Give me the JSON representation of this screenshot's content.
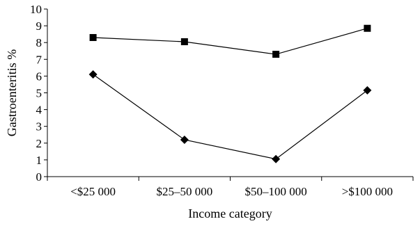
{
  "chart_data": {
    "type": "line",
    "title": "",
    "xlabel": "Income category",
    "ylabel": "Gastroenteritis %",
    "categories": [
      "<$25 000",
      "$25–50 000",
      "$50–100 000",
      ">$100 000"
    ],
    "ylim": [
      0,
      10
    ],
    "yticks": [
      0,
      1,
      2,
      3,
      4,
      5,
      6,
      7,
      8,
      9,
      10
    ],
    "grid": false,
    "legend": "none",
    "series": [
      {
        "marker": "square",
        "color": "#000000",
        "values": [
          8.3,
          8.05,
          7.3,
          8.85
        ]
      },
      {
        "marker": "diamond",
        "color": "#000000",
        "values": [
          6.1,
          2.2,
          1.05,
          5.15
        ]
      }
    ]
  }
}
